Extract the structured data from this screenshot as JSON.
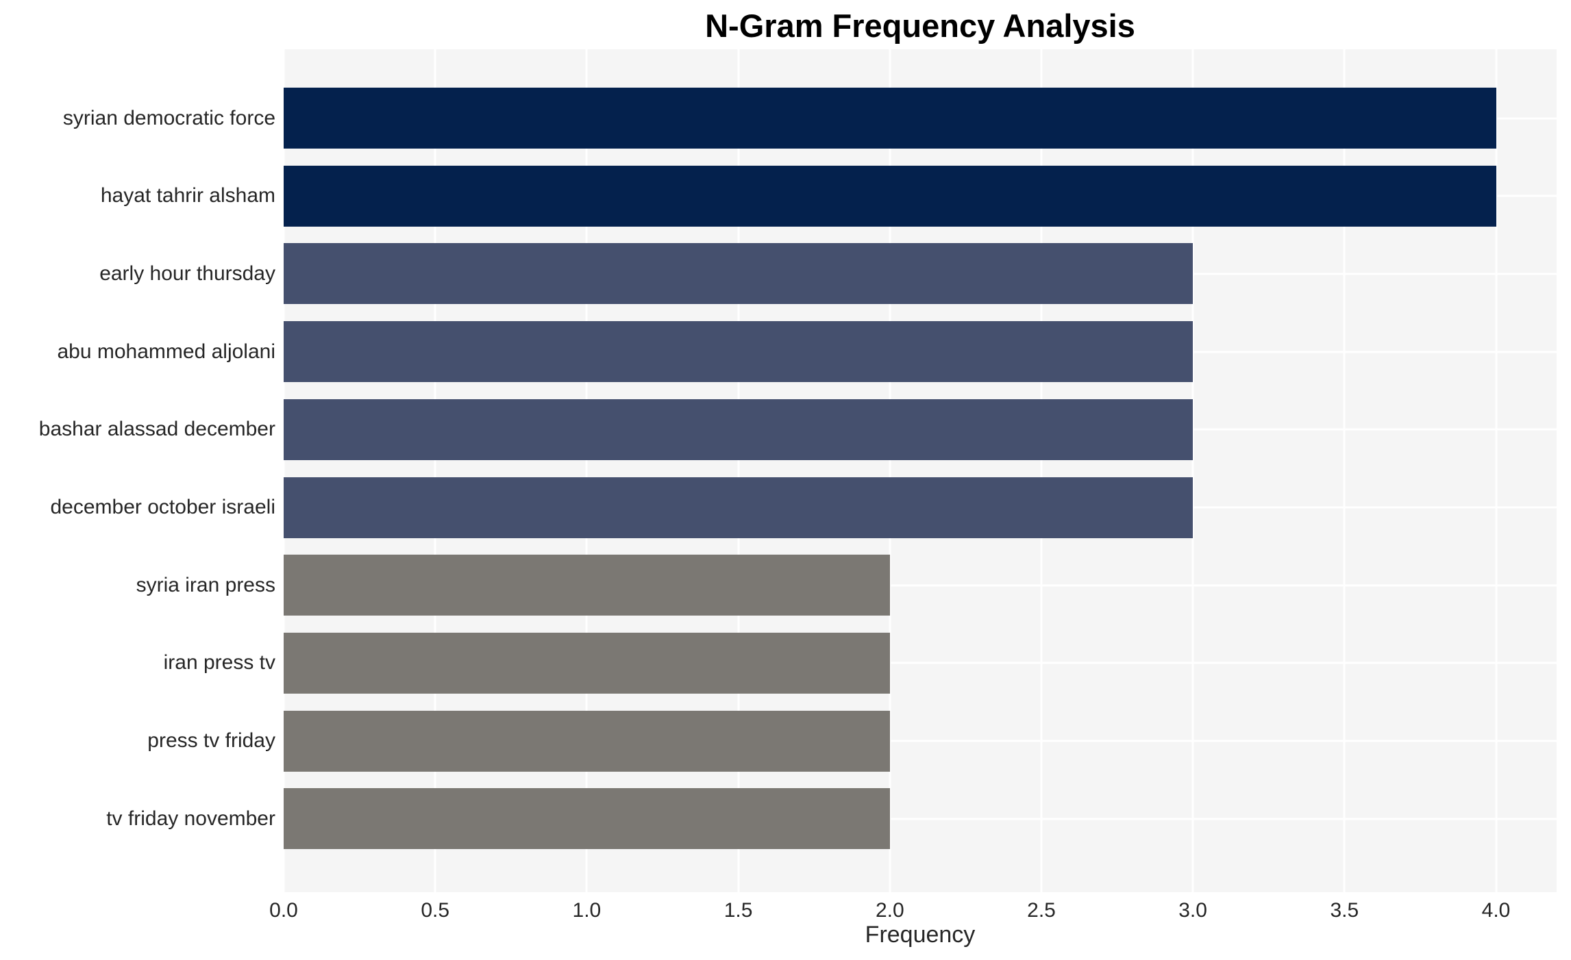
{
  "chart_data": {
    "type": "bar",
    "orientation": "horizontal",
    "title": "N-Gram Frequency Analysis",
    "xlabel": "Frequency",
    "ylabel": "",
    "categories": [
      "syrian democratic force",
      "hayat tahrir alsham",
      "early hour thursday",
      "abu mohammed aljolani",
      "bashar alassad december",
      "december october israeli",
      "syria iran press",
      "iran press tv",
      "press tv friday",
      "tv friday november"
    ],
    "values": [
      4,
      4,
      3,
      3,
      3,
      3,
      2,
      2,
      2,
      2
    ],
    "bar_colors": [
      "#04214d",
      "#04214d",
      "#45506e",
      "#45506e",
      "#45506e",
      "#45506e",
      "#7b7873",
      "#7b7873",
      "#7b7873",
      "#7b7873"
    ],
    "xlim": [
      0,
      4.2
    ],
    "xticks": [
      0,
      0.5,
      1,
      1.5,
      2,
      2.5,
      3,
      3.5,
      4
    ],
    "xtick_labels": [
      "0.0",
      "0.5",
      "1.0",
      "1.5",
      "2.0",
      "2.5",
      "3.0",
      "3.5",
      "4.0"
    ],
    "legend": "none",
    "grid": {
      "gridline_color": "#ffffff",
      "plot_background": "#f5f5f5",
      "page_background": "#ffffff"
    },
    "value_color_map": {
      "4": "#04214d",
      "3": "#45506e",
      "2": "#7b7873"
    }
  }
}
